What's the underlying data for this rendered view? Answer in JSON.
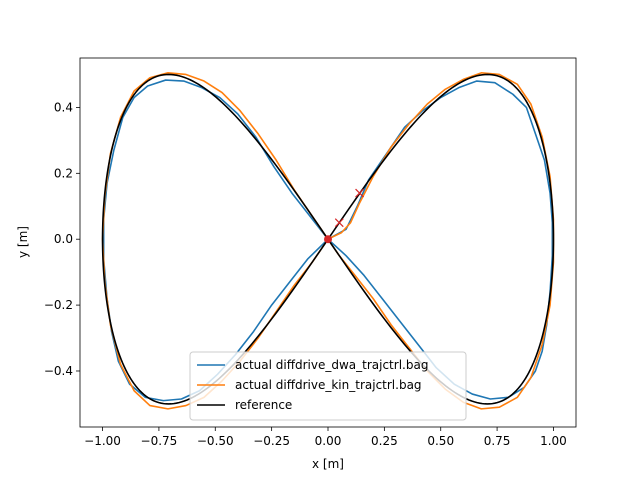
{
  "chart_data": {
    "type": "line",
    "title": "",
    "xlabel": "x [m]",
    "ylabel": "y [m]",
    "xlim": [
      -1.1,
      1.1
    ],
    "ylim": [
      -0.57,
      0.55
    ],
    "xticks": [
      -1.0,
      -0.75,
      -0.5,
      -0.25,
      0.0,
      0.25,
      0.5,
      0.75,
      1.0
    ],
    "xtick_labels": [
      "−1.00",
      "−0.75",
      "−0.50",
      "−0.25",
      "0.00",
      "0.25",
      "0.50",
      "0.75",
      "1.00"
    ],
    "yticks": [
      -0.4,
      -0.2,
      0.0,
      0.2,
      0.4
    ],
    "ytick_labels": [
      "−0.4",
      "−0.2",
      "0.0",
      "0.2",
      "0.4"
    ],
    "grid": false,
    "legend_position": "lower-center",
    "series": [
      {
        "name": "actual diffdrive_dwa_trajctrl.bag",
        "color": "#1f77b4",
        "points": [
          [
            0.0,
            0.0
          ],
          [
            0.08,
            0.03
          ],
          [
            0.13,
            0.1
          ],
          [
            0.18,
            0.18
          ],
          [
            0.26,
            0.26
          ],
          [
            0.34,
            0.34
          ],
          [
            0.42,
            0.39
          ],
          [
            0.5,
            0.43
          ],
          [
            0.58,
            0.46
          ],
          [
            0.66,
            0.48
          ],
          [
            0.74,
            0.475
          ],
          [
            0.82,
            0.44
          ],
          [
            0.88,
            0.4
          ],
          [
            0.92,
            0.32
          ],
          [
            0.96,
            0.24
          ],
          [
            0.985,
            0.14
          ],
          [
            0.995,
            0.05
          ],
          [
            0.995,
            -0.05
          ],
          [
            0.985,
            -0.16
          ],
          [
            0.97,
            -0.26
          ],
          [
            0.95,
            -0.34
          ],
          [
            0.92,
            -0.4
          ],
          [
            0.87,
            -0.45
          ],
          [
            0.8,
            -0.48
          ],
          [
            0.72,
            -0.485
          ],
          [
            0.64,
            -0.47
          ],
          [
            0.56,
            -0.44
          ],
          [
            0.48,
            -0.39
          ],
          [
            0.4,
            -0.32
          ],
          [
            0.32,
            -0.25
          ],
          [
            0.24,
            -0.18
          ],
          [
            0.16,
            -0.11
          ],
          [
            0.08,
            -0.05
          ],
          [
            0.0,
            0.0
          ],
          [
            -0.08,
            0.07
          ],
          [
            -0.16,
            0.14
          ],
          [
            -0.24,
            0.22
          ],
          [
            -0.32,
            0.31
          ],
          [
            -0.4,
            0.38
          ],
          [
            -0.48,
            0.43
          ],
          [
            -0.56,
            0.46
          ],
          [
            -0.64,
            0.48
          ],
          [
            -0.72,
            0.483
          ],
          [
            -0.8,
            0.465
          ],
          [
            -0.86,
            0.43
          ],
          [
            -0.91,
            0.37
          ],
          [
            -0.95,
            0.27
          ],
          [
            -0.98,
            0.17
          ],
          [
            -0.995,
            0.06
          ],
          [
            -0.995,
            -0.06
          ],
          [
            -0.98,
            -0.18
          ],
          [
            -0.96,
            -0.28
          ],
          [
            -0.93,
            -0.37
          ],
          [
            -0.88,
            -0.44
          ],
          [
            -0.81,
            -0.48
          ],
          [
            -0.73,
            -0.49
          ],
          [
            -0.65,
            -0.485
          ],
          [
            -0.57,
            -0.46
          ],
          [
            -0.49,
            -0.41
          ],
          [
            -0.41,
            -0.35
          ],
          [
            -0.33,
            -0.28
          ],
          [
            -0.25,
            -0.2
          ],
          [
            -0.17,
            -0.13
          ],
          [
            -0.09,
            -0.06
          ],
          [
            0.0,
            0.0
          ]
        ]
      },
      {
        "name": "actual diffdrive_kin_trajctrl.bag",
        "color": "#ff7f0e",
        "points": [
          [
            0.0,
            0.0
          ],
          [
            0.06,
            0.02
          ],
          [
            0.1,
            0.05
          ],
          [
            0.14,
            0.11
          ],
          [
            0.2,
            0.19
          ],
          [
            0.28,
            0.28
          ],
          [
            0.36,
            0.35
          ],
          [
            0.44,
            0.41
          ],
          [
            0.52,
            0.455
          ],
          [
            0.6,
            0.485
          ],
          [
            0.68,
            0.505
          ],
          [
            0.76,
            0.5
          ],
          [
            0.84,
            0.47
          ],
          [
            0.9,
            0.41
          ],
          [
            0.95,
            0.31
          ],
          [
            0.985,
            0.19
          ],
          [
            1.0,
            0.06
          ],
          [
            1.0,
            -0.07
          ],
          [
            0.985,
            -0.2
          ],
          [
            0.95,
            -0.32
          ],
          [
            0.9,
            -0.42
          ],
          [
            0.84,
            -0.48
          ],
          [
            0.76,
            -0.51
          ],
          [
            0.68,
            -0.515
          ],
          [
            0.6,
            -0.495
          ],
          [
            0.52,
            -0.455
          ],
          [
            0.44,
            -0.4
          ],
          [
            0.36,
            -0.33
          ],
          [
            0.28,
            -0.26
          ],
          [
            0.2,
            -0.18
          ],
          [
            0.12,
            -0.11
          ],
          [
            0.05,
            -0.05
          ],
          [
            0.0,
            0.0
          ],
          [
            -0.07,
            0.07
          ],
          [
            -0.15,
            0.15
          ],
          [
            -0.23,
            0.24
          ],
          [
            -0.31,
            0.32
          ],
          [
            -0.39,
            0.39
          ],
          [
            -0.47,
            0.445
          ],
          [
            -0.55,
            0.48
          ],
          [
            -0.63,
            0.5
          ],
          [
            -0.71,
            0.505
          ],
          [
            -0.79,
            0.49
          ],
          [
            -0.86,
            0.45
          ],
          [
            -0.92,
            0.37
          ],
          [
            -0.965,
            0.26
          ],
          [
            -0.99,
            0.13
          ],
          [
            -1.0,
            0.0
          ],
          [
            -0.99,
            -0.13
          ],
          [
            -0.965,
            -0.26
          ],
          [
            -0.92,
            -0.38
          ],
          [
            -0.86,
            -0.46
          ],
          [
            -0.79,
            -0.505
          ],
          [
            -0.71,
            -0.515
          ],
          [
            -0.63,
            -0.505
          ],
          [
            -0.55,
            -0.48
          ],
          [
            -0.47,
            -0.43
          ],
          [
            -0.39,
            -0.37
          ],
          [
            -0.31,
            -0.3
          ],
          [
            -0.23,
            -0.22
          ],
          [
            -0.15,
            -0.14
          ],
          [
            -0.07,
            -0.07
          ],
          [
            0.0,
            0.0
          ]
        ]
      },
      {
        "name": "reference",
        "color": "#000000",
        "points": "lemniscate"
      }
    ],
    "markers": [
      {
        "kind": "x",
        "color": "#d62728",
        "x": 0.05,
        "y": 0.05
      },
      {
        "kind": "x",
        "color": "#d62728",
        "x": 0.14,
        "y": 0.14
      },
      {
        "kind": "circle",
        "color": "#d62728",
        "x": 0.0,
        "y": 0.0
      }
    ]
  }
}
